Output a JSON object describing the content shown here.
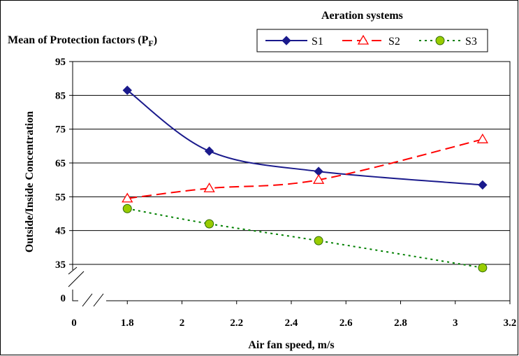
{
  "chart_data": {
    "type": "line",
    "title": "Mean of Protection factors (P",
    "title_subscript": "F",
    "title_suffix": ")",
    "legend_title": "Aeration systems",
    "legend_placement": "top-right",
    "xlabel": "Air fan speed, m/s",
    "ylabel": "Outside/Inside Concentration",
    "xlim": [
      1.6,
      3.2
    ],
    "ylim": [
      30,
      95
    ],
    "x_ticks": [
      "1.8",
      "2",
      "2.2",
      "2.4",
      "2.6",
      "2.8",
      "3",
      "3.2"
    ],
    "x_tick_values": [
      1.8,
      2.0,
      2.2,
      2.4,
      2.6,
      2.8,
      3.0,
      3.2
    ],
    "x_origin_label": "0",
    "y_ticks": [
      "35",
      "45",
      "55",
      "65",
      "75",
      "85",
      "95"
    ],
    "y_tick_values": [
      35,
      45,
      55,
      65,
      75,
      85,
      95
    ],
    "y_origin_label": "0",
    "axis_break": true,
    "grid": "horizontal",
    "series": [
      {
        "name": "S1",
        "color": "#1a1a8c",
        "marker": "diamond",
        "line": "solid",
        "x": [
          1.8,
          2.1,
          2.5,
          3.1
        ],
        "y": [
          86.5,
          68.5,
          62.5,
          58.5
        ]
      },
      {
        "name": "S2",
        "color": "#ff0000",
        "marker": "triangle-open",
        "line": "dashed",
        "x": [
          1.8,
          2.1,
          2.5,
          3.1
        ],
        "y": [
          54.5,
          57.5,
          60,
          72
        ]
      },
      {
        "name": "S3",
        "color": "#008000",
        "marker_fill": "#99cc00",
        "marker": "circle",
        "line": "dotted",
        "x": [
          1.8,
          2.1,
          2.5,
          3.1
        ],
        "y": [
          51.5,
          47,
          42,
          34
        ]
      }
    ]
  }
}
